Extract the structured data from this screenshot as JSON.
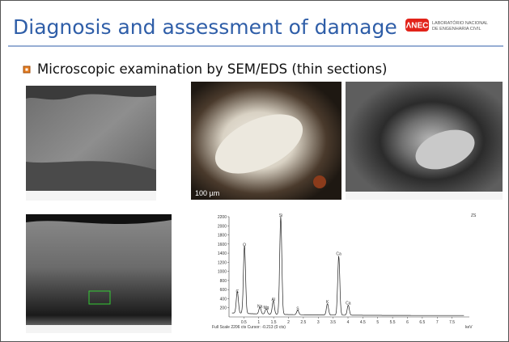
{
  "header": {
    "title": "Diagnosis and assessment of damage",
    "logo_mark": "ΛNEC",
    "logo_line1": "LABORATÓRIO NACIONAL",
    "logo_line2": "DE ENGENHARIA CIVIL"
  },
  "bullet": "Microscopic examination by SEM/EDS (thin sections)",
  "micrographs": {
    "scale_bar": "100 µm"
  },
  "spectrum": {
    "yticks": [
      200,
      400,
      600,
      800,
      1000,
      1200,
      1400,
      1600,
      1800,
      2000,
      2200
    ],
    "xticks": [
      0.5,
      1,
      1.5,
      2,
      2.5,
      3,
      3.5,
      4,
      4.5,
      5,
      5.5,
      6,
      6.5,
      7,
      7.5
    ],
    "x_unit": "keV",
    "peaks": [
      "C",
      "O",
      "Na",
      "Mg",
      "Al",
      "Si",
      "S",
      "K",
      "Ca",
      "Ca"
    ],
    "corner": "ZS",
    "footer": "Full Scale 2206 cts Cursor: -0.213 (0 cts)"
  }
}
